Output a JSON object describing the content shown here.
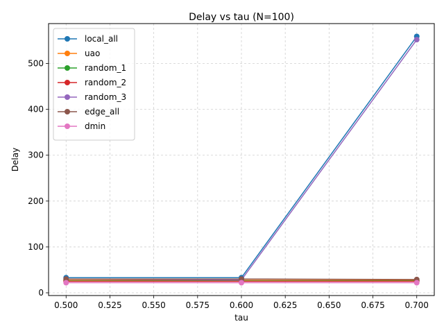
{
  "chart_data": {
    "type": "line",
    "title": "Delay vs tau (N=100)",
    "xlabel": "tau",
    "ylabel": "Delay",
    "x": [
      0.5,
      0.6,
      0.7
    ],
    "xlim": [
      0.49,
      0.71
    ],
    "ylim": [
      -6,
      587
    ],
    "xticks": [
      "0.500",
      "0.525",
      "0.550",
      "0.575",
      "0.600",
      "0.625",
      "0.650",
      "0.675",
      "0.700"
    ],
    "yticks": [
      "0",
      "100",
      "200",
      "300",
      "400",
      "500"
    ],
    "grid": true,
    "legend_position": "top-left",
    "series": [
      {
        "name": "local_all",
        "color": "#1f77b4",
        "values": [
          33,
          33,
          559
        ]
      },
      {
        "name": "uao",
        "color": "#ff7f0e",
        "values": [
          27,
          27,
          27
        ]
      },
      {
        "name": "random_1",
        "color": "#2ca02c",
        "values": [
          26,
          26,
          26
        ]
      },
      {
        "name": "random_2",
        "color": "#d62728",
        "values": [
          25,
          25,
          25
        ]
      },
      {
        "name": "random_3",
        "color": "#9467bd",
        "values": [
          30,
          28,
          552
        ]
      },
      {
        "name": "edge_all",
        "color": "#8c564b",
        "values": [
          30,
          30,
          29
        ]
      },
      {
        "name": "dmin",
        "color": "#e377c2",
        "values": [
          22,
          22,
          22
        ]
      }
    ]
  }
}
